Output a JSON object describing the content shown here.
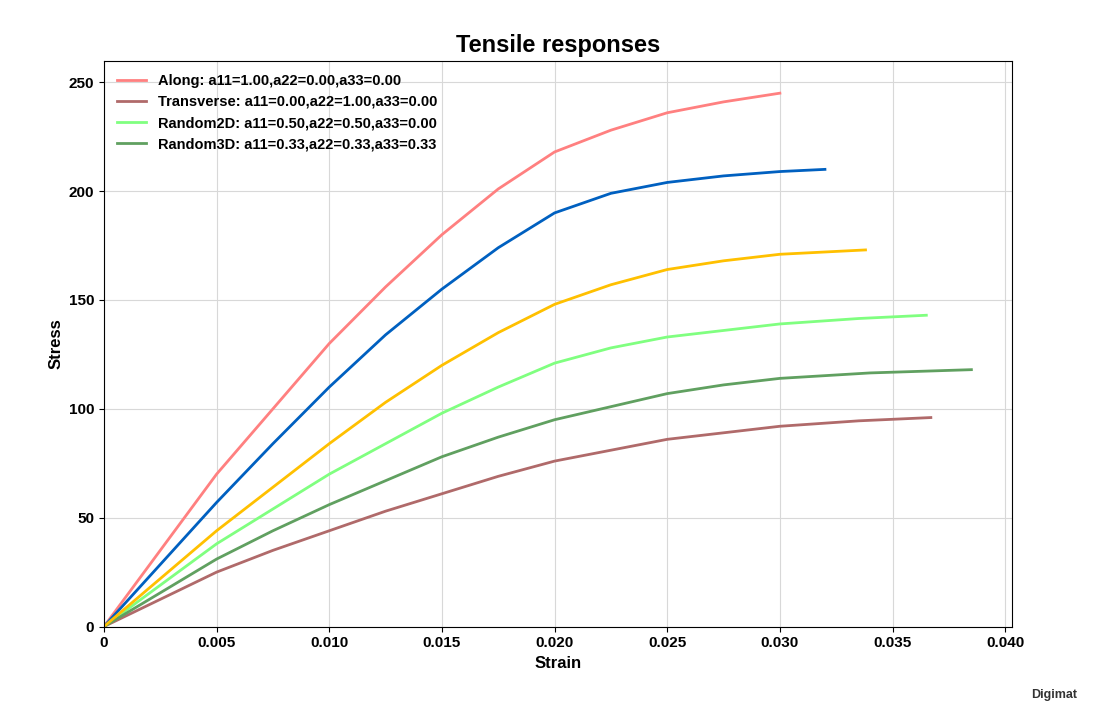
{
  "chart_data": {
    "type": "line",
    "title": "Tensile responses",
    "x_label": "Strain",
    "y_label": "Stress",
    "annotation": "Digimat",
    "xlim": [
      0,
      0.0403
    ],
    "ylim": [
      0,
      260
    ],
    "xticks": [
      0,
      0.005,
      {
        "value": 0.01,
        "label": "0.010"
      },
      0.015,
      {
        "value": 0.02,
        "label": "0.020"
      },
      0.025,
      {
        "value": 0.03,
        "label": "0.030"
      },
      0.035,
      {
        "value": 0.04,
        "label": "0.040"
      }
    ],
    "yticks": [
      0,
      50,
      100,
      150,
      200,
      250
    ],
    "grid": true,
    "legend": "upper left",
    "series": [
      {
        "name": "Along: a11=1.00,a22=0.00,a33=0.00",
        "color": "#ff8080",
        "x": [
          0,
          0.005,
          0.0075,
          0.01,
          0.0125,
          0.015,
          0.0175,
          0.02,
          0.0225,
          0.025,
          0.0275,
          0.03
        ],
        "values": [
          0,
          70,
          100,
          130,
          156,
          180,
          201,
          218,
          228,
          236,
          241,
          245
        ]
      },
      {
        "name": "Transverse: a11=0.00,a22=1.00,a33=0.00",
        "color": "#b06a6a",
        "x": [
          0,
          0.005,
          0.0075,
          0.01,
          0.0125,
          0.015,
          0.0175,
          0.02,
          0.0225,
          0.025,
          0.0275,
          0.03,
          0.0335,
          0.0367
        ],
        "values": [
          0,
          25,
          35,
          44,
          53,
          61,
          69,
          76,
          81,
          86,
          89,
          92,
          94.5,
          96
        ]
      },
      {
        "name": "Random2D: a11=0.50,a22=0.50,a33=0.00",
        "color": "#80ff80",
        "x": [
          0,
          0.005,
          0.0075,
          0.01,
          0.0125,
          0.015,
          0.0175,
          0.02,
          0.0225,
          0.025,
          0.0275,
          0.03,
          0.0335,
          0.0365
        ],
        "values": [
          0,
          38,
          54,
          70,
          84,
          98,
          110,
          121,
          128,
          133,
          136,
          139,
          141.5,
          143
        ]
      },
      {
        "name": "Random3D: a11=0.33,a22=0.33,a33=0.33",
        "color": "#60a060",
        "x": [
          0,
          0.005,
          0.0075,
          0.01,
          0.0125,
          0.015,
          0.0175,
          0.02,
          0.0225,
          0.025,
          0.0275,
          0.03,
          0.034,
          0.0385
        ],
        "values": [
          0,
          31,
          44,
          56,
          67,
          78,
          87,
          95,
          101,
          107,
          111,
          114,
          116.5,
          118
        ]
      },
      {
        "color": "#0060c0",
        "x": [
          0,
          0.005,
          0.0075,
          0.01,
          0.0125,
          0.015,
          0.0175,
          0.02,
          0.0225,
          0.025,
          0.0275,
          0.03,
          0.032
        ],
        "values": [
          0,
          57,
          84,
          110,
          134,
          155,
          174,
          190,
          199,
          204,
          207,
          209,
          210
        ]
      },
      {
        "color": "#ffc000",
        "x": [
          0,
          0.005,
          0.0075,
          0.01,
          0.0125,
          0.015,
          0.0175,
          0.02,
          0.0225,
          0.025,
          0.0275,
          0.03,
          0.0338
        ],
        "values": [
          0,
          44,
          64,
          84,
          103,
          120,
          135,
          148,
          157,
          164,
          168,
          171,
          173
        ]
      }
    ]
  }
}
